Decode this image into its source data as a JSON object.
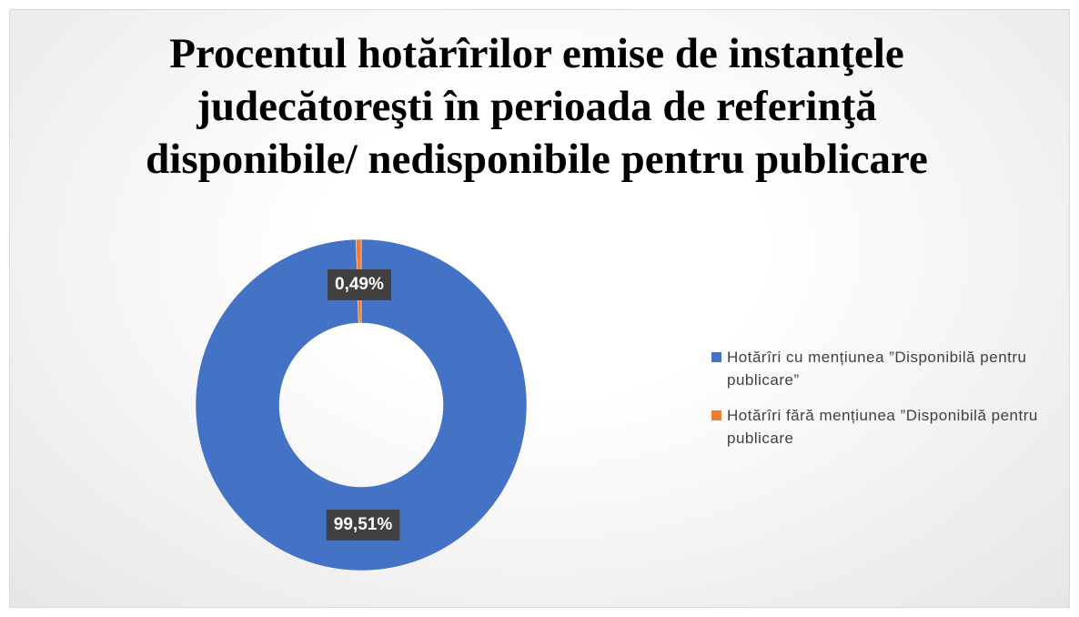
{
  "chart_data": {
    "type": "donut",
    "title": "Procentul hotărîrilor emise de instanţele judecătoreşti în perioada de referinţă disponibile/ nedisponibile pentru publicare",
    "categories": [
      "Hotărîri cu mențiunea ”Disponibilă pentru publicare”",
      "Hotărîri fără mențiunea ”Disponibilă pentru publicare"
    ],
    "values": [
      99.51,
      0.49
    ],
    "value_labels": [
      "99,51%",
      "0,49%"
    ],
    "colors": [
      "#4472c4",
      "#ed7d31"
    ],
    "legend": "right"
  }
}
